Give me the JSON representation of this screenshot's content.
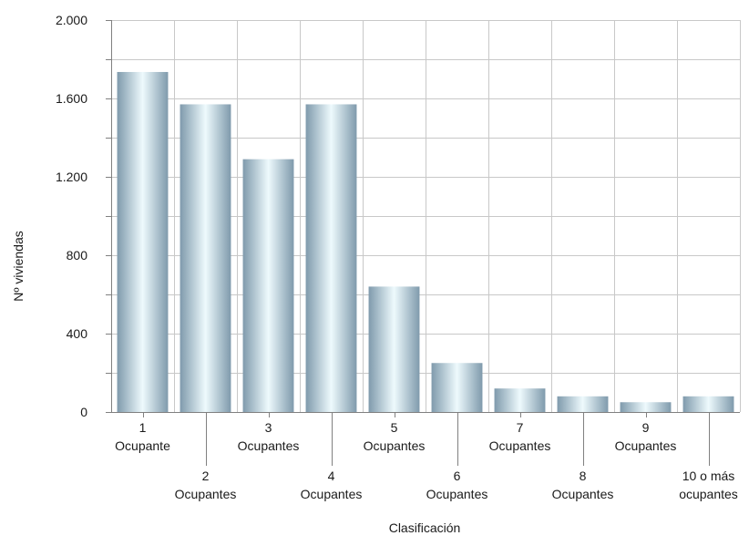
{
  "chart_data": {
    "type": "bar",
    "title": "",
    "xlabel": "Clasificación",
    "ylabel": "Nº viviendas",
    "ylim": [
      0,
      2000
    ],
    "yticks": [
      {
        "value": 0,
        "label": "0"
      },
      {
        "value": 400,
        "label": "400"
      },
      {
        "value": 800,
        "label": "800"
      },
      {
        "value": 1200,
        "label": "1.200"
      },
      {
        "value": 1600,
        "label": "1.600"
      },
      {
        "value": 2000,
        "label": "2.000"
      }
    ],
    "grid": true,
    "categories": [
      [
        "1",
        "Ocupante"
      ],
      [
        "2",
        "Ocupantes"
      ],
      [
        "3",
        "Ocupantes"
      ],
      [
        "4",
        "Ocupantes"
      ],
      [
        "5",
        "Ocupantes"
      ],
      [
        "6",
        "Ocupantes"
      ],
      [
        "7",
        "Ocupantes"
      ],
      [
        "8",
        "Ocupantes"
      ],
      [
        "9",
        "Ocupantes"
      ],
      [
        "10 o más",
        "ocupantes"
      ]
    ],
    "values": [
      1735,
      1570,
      1290,
      1570,
      640,
      250,
      120,
      80,
      50,
      80
    ],
    "colors": {
      "bar_dark": "#7f9aac",
      "bar_light": "#eefafd"
    }
  }
}
